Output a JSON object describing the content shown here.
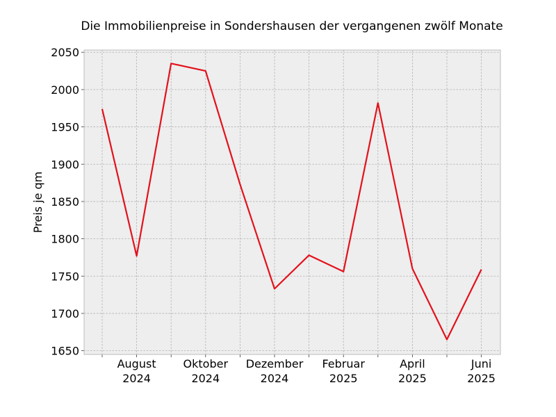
{
  "chart_data": {
    "type": "line",
    "title": "Die Immobilienpreise in Sondershausen der vergangenen zwölf Monate",
    "xlabel": "",
    "ylabel": "Preis je qm",
    "ylim": [
      1645,
      2053
    ],
    "y_ticks": [
      1650,
      1700,
      1750,
      1800,
      1850,
      1900,
      1950,
      2000,
      2050
    ],
    "x_months": [
      "2024-07",
      "2024-08",
      "2024-09",
      "2024-10",
      "2024-11",
      "2024-12",
      "2025-01",
      "2025-02",
      "2025-03",
      "2025-04",
      "2025-05",
      "2025-06"
    ],
    "x_tick_labels": [
      {
        "month": "2024-08",
        "line1": "August",
        "line2": "2024"
      },
      {
        "month": "2024-10",
        "line1": "Oktober",
        "line2": "2024"
      },
      {
        "month": "2024-12",
        "line1": "Dezember",
        "line2": "2024"
      },
      {
        "month": "2025-02",
        "line1": "Februar",
        "line2": "2025"
      },
      {
        "month": "2025-04",
        "line1": "April",
        "line2": "2025"
      },
      {
        "month": "2025-06",
        "line1": "Juni",
        "line2": "2025"
      }
    ],
    "series": [
      {
        "values": [
          1974,
          1777,
          2035,
          2025,
          1873,
          1733,
          1778,
          1756,
          1982,
          1760,
          1665,
          1759
        ]
      }
    ],
    "grid": true,
    "colors": {
      "line": "#e3111b",
      "plot_background": "#eeeeee",
      "frame": "#bcbcbc"
    }
  }
}
